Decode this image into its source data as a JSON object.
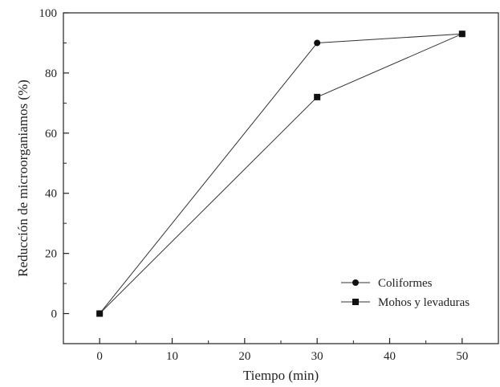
{
  "chart_data": {
    "type": "line",
    "title": "",
    "xlabel": "Tiempo (min)",
    "ylabel": "Reducción de microorganiamos (%)",
    "xlim": [
      -5,
      55
    ],
    "ylim": [
      -10,
      100
    ],
    "xticks": [
      0,
      10,
      20,
      30,
      40,
      50
    ],
    "yticks": [
      0,
      20,
      40,
      60,
      80,
      100
    ],
    "grid": false,
    "legend_position": "bottom-right",
    "series": [
      {
        "name": "Coliformes",
        "marker": "circle",
        "x": [
          0,
          30,
          50
        ],
        "y": [
          0,
          90,
          93
        ]
      },
      {
        "name": "Mohos y levaduras",
        "marker": "square",
        "x": [
          0,
          30,
          50
        ],
        "y": [
          0,
          72,
          93
        ]
      }
    ]
  }
}
